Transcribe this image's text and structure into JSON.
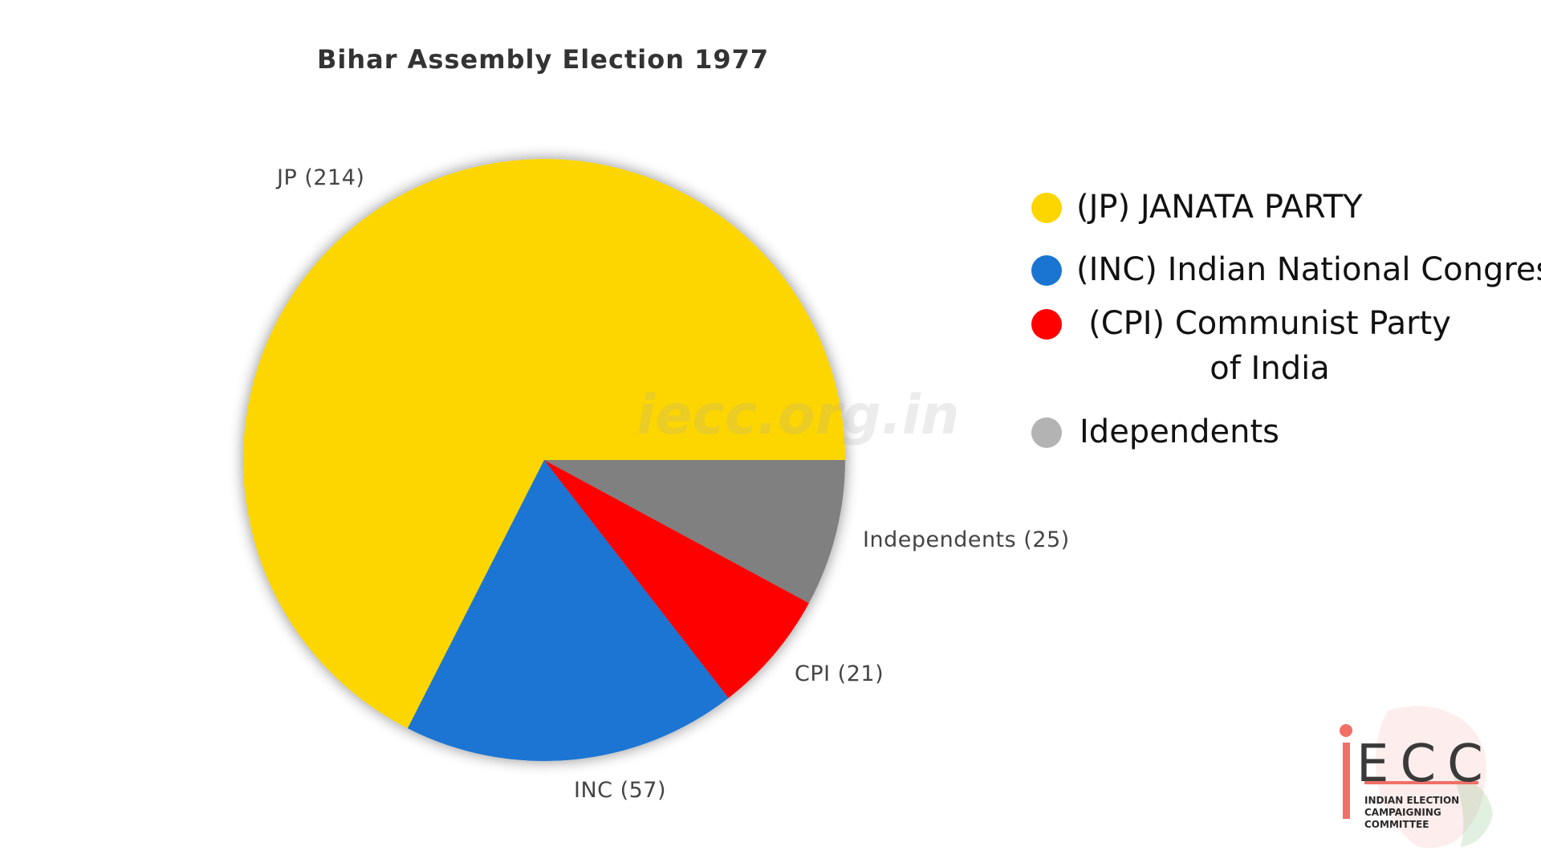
{
  "chart_data": {
    "type": "pie",
    "title": "Bihar Assembly Election 1977",
    "slices": [
      {
        "name": "JP",
        "value": 214,
        "color": "#FDD600",
        "label": "JP (214)"
      },
      {
        "name": "INC",
        "value": 57,
        "color": "#1A75D2",
        "label": "INC (57)"
      },
      {
        "name": "CPI",
        "value": 21,
        "color": "#FF0000",
        "label": "CPI (21)"
      },
      {
        "name": "Independents",
        "value": 25,
        "color": "#808080",
        "label": "Independents (25)"
      }
    ],
    "start": "3 o'clock",
    "direction": "counterclockwise",
    "legend_placement": "right"
  },
  "watermark": "iecc.org.in",
  "legend": {
    "items": [
      {
        "label": "(JP) JANATA PARTY",
        "color": "#FDD600"
      },
      {
        "label": "(INC) Indian National Congress",
        "color": "#1A75D2"
      },
      {
        "label": "(CPI) Communist Party of India",
        "color": "#FF0000"
      },
      {
        "label": "Idependents",
        "color": "#B3B3B3"
      }
    ]
  },
  "logo": {
    "letters": "ECC",
    "line1": "INDIAN ELECTION",
    "line2": "CAMPAIGNING COMMITTEE",
    "accent_color": "#F07067"
  }
}
